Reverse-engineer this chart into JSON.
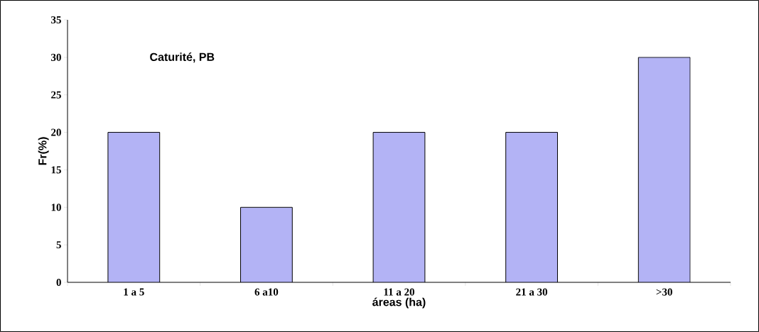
{
  "chart_data": {
    "type": "bar",
    "title": "Caturité, PB",
    "xlabel": "áreas (ha)",
    "ylabel": "Fr(%)",
    "categories": [
      "1 a 5",
      "6 a10",
      "11 a 20",
      "21 a 30",
      ">30"
    ],
    "values": [
      20,
      10,
      20,
      20,
      30
    ],
    "color": "#b3b3f5",
    "ylim": [
      0,
      35
    ],
    "yticks": [
      0,
      5,
      10,
      15,
      20,
      25,
      30,
      35
    ]
  }
}
